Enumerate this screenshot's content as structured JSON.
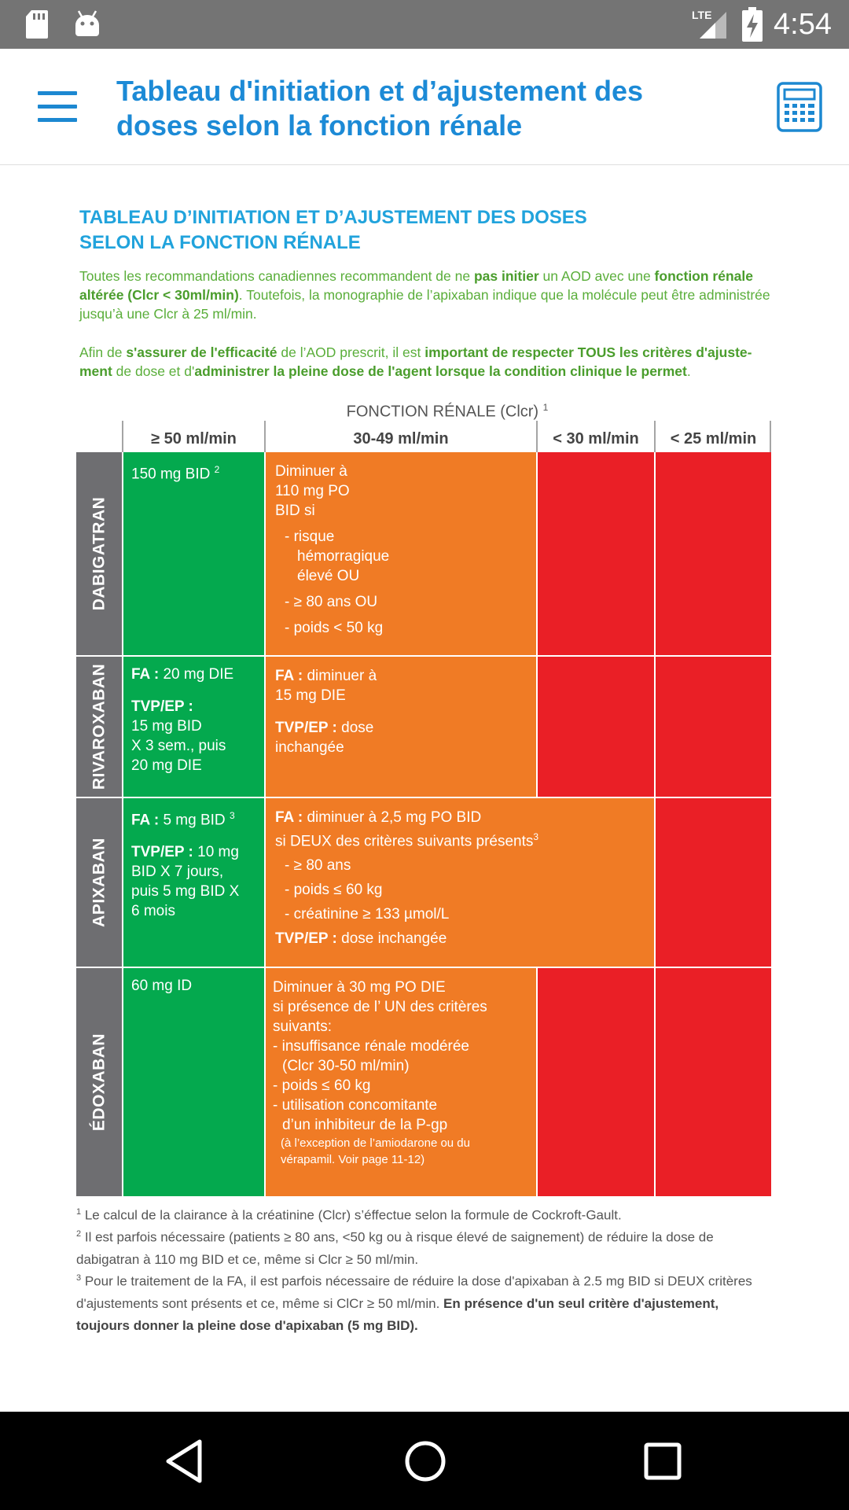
{
  "status_bar": {
    "time": "4:54",
    "network": "LTE"
  },
  "app_bar": {
    "title": "Tableau d'initiation et d’ajustement des doses selon la fonction rénale"
  },
  "document": {
    "heading_line1": "TABLEAU D’INITIATION ET D’AJUSTEMENT DES DOSES",
    "heading_line2": "SELON LA FONCTION RÉNALE",
    "intro1": {
      "a": "Toutes les recommandations canadiennes recommandent de ne ",
      "b": "pas initier",
      "c": " un AOD avec une ",
      "d": "fonction rénale altérée (Clcr < 30ml/min)",
      "e": ". Toutefois, la monographie de l’apixaban indique que la molécule peut être administrée jusqu’à une Clcr à 25 ml/min."
    },
    "intro2": {
      "a": "Afin de ",
      "b": "s'assurer de l'efficacité",
      "c": " de l’AOD prescrit, il est ",
      "d": "important de respecter TOUS les critères d'ajuste-ment",
      "e": " de dose et d'",
      "f": "administrer la pleine dose de l'agent lorsque la condition clinique le permet",
      "g": "."
    }
  },
  "table": {
    "header_title": "FONCTION RÉNALE (Clcr)",
    "header_sup": "1",
    "columns": [
      "≥ 50 ml/min",
      "30-49 ml/min",
      "< 30 ml/min",
      "< 25 ml/min"
    ],
    "rows": {
      "dabigatran": {
        "drug": "DABIGATRAN",
        "c50": "150 mg BID",
        "c50_sup": "2",
        "c30_lines": [
          "Diminuer à",
          "110 mg PO",
          "BID si"
        ],
        "c30_bullets": [
          "- risque",
          "hémorragique",
          "élevé OU",
          "- ≥ 80 ans OU",
          "- poids < 50 kg"
        ]
      },
      "rivaroxaban": {
        "drug": "RIVAROXABAN",
        "c50_fa_label": "FA :",
        "c50_fa_value": " 20 mg DIE",
        "c50_tvp_label": "TVP/EP :",
        "c50_tvp_lines": [
          "15 mg BID",
          "X 3 sem., puis",
          "20 mg DIE"
        ],
        "c30_fa_label": "FA :",
        "c30_fa_lines": [
          " diminuer à",
          "15 mg DIE"
        ],
        "c30_tvp_label": "TVP/EP :",
        "c30_tvp_lines": [
          " dose",
          "inchangée"
        ]
      },
      "apixaban": {
        "drug": "APIXABAN",
        "c50_fa_label": "FA :",
        "c50_fa_value": " 5 mg BID",
        "c50_fa_sup": "3",
        "c50_tvp_label": "TVP/EP :",
        "c50_tvp_lines": [
          " 10 mg",
          "BID X 7 jours,",
          "puis 5 mg BID X",
          "6 mois"
        ],
        "c30_fa_label": "FA :",
        "c30_fa_line1": " diminuer à 2,5 mg PO BID",
        "c30_fa_line2": "si DEUX des critères suivants présents",
        "c30_fa_sup": "3",
        "c30_bullets": [
          "- ≥ 80 ans",
          "- poids ≤ 60 kg",
          "- créatinine ≥ 133 µmol/L"
        ],
        "c30_tvp_label": "TVP/EP :",
        "c30_tvp_value": " dose inchangée"
      },
      "edoxaban": {
        "drug": "ÉDOXABAN",
        "c50": "60 mg ID",
        "c30_lines": [
          "Diminuer à 30 mg PO DIE",
          "si présence de l’ UN des critères",
          "suivants:",
          "- insuffisance rénale modérée",
          "(Clcr 30-50 ml/min)",
          "- poids ≤ 60 kg",
          "- utilisation concomitante",
          "d’un inhibiteur de la P-gp"
        ],
        "c30_small": [
          "(à l’exception de l’amiodarone ou du",
          "vérapamil. Voir page 11-12)"
        ]
      }
    }
  },
  "footnotes": {
    "f1_num": "1",
    "f1": " Le calcul de la clairance à la créatinine (Clcr) s’éffectue selon la formule de Cockroft-Gault.",
    "f2_num": "2",
    "f2": " Il est parfois nécessaire (patients ≥ 80 ans, <50 kg ou à risque élevé de saignement) de réduire la dose de dabigatran à 110 mg BID et ce, même si Clcr ≥  50 ml/min.",
    "f3_num": "3",
    "f3a": " Pour le traitement de la FA, il est parfois nécessaire de réduire la dose d'apixaban à 2.5 mg BID si DEUX critères d'ajustements sont présents et ce, même si ClCr ≥ 50 ml/min. ",
    "f3b": "En présence d'un seul critère d'ajustement, toujours donner la pleine dose d'apixaban (5 mg BID)."
  },
  "colors": {
    "status_bar": "#747474",
    "title_blue": "#1c8ad6",
    "heading_blue": "#21a3dc",
    "intro_green": "#5aae3a",
    "cell_green": "#04a94e",
    "cell_orange": "#f07b25",
    "cell_red": "#ea1f26",
    "drug_grey": "#6e6e71"
  },
  "icons": {
    "sd_card": "sd-card-icon",
    "android": "android-icon",
    "signal": "signal-icon",
    "battery": "battery-charging-icon",
    "menu": "menu-icon",
    "calculator": "calculator-icon",
    "back": "back-icon",
    "home": "home-icon",
    "recents": "recents-icon"
  }
}
